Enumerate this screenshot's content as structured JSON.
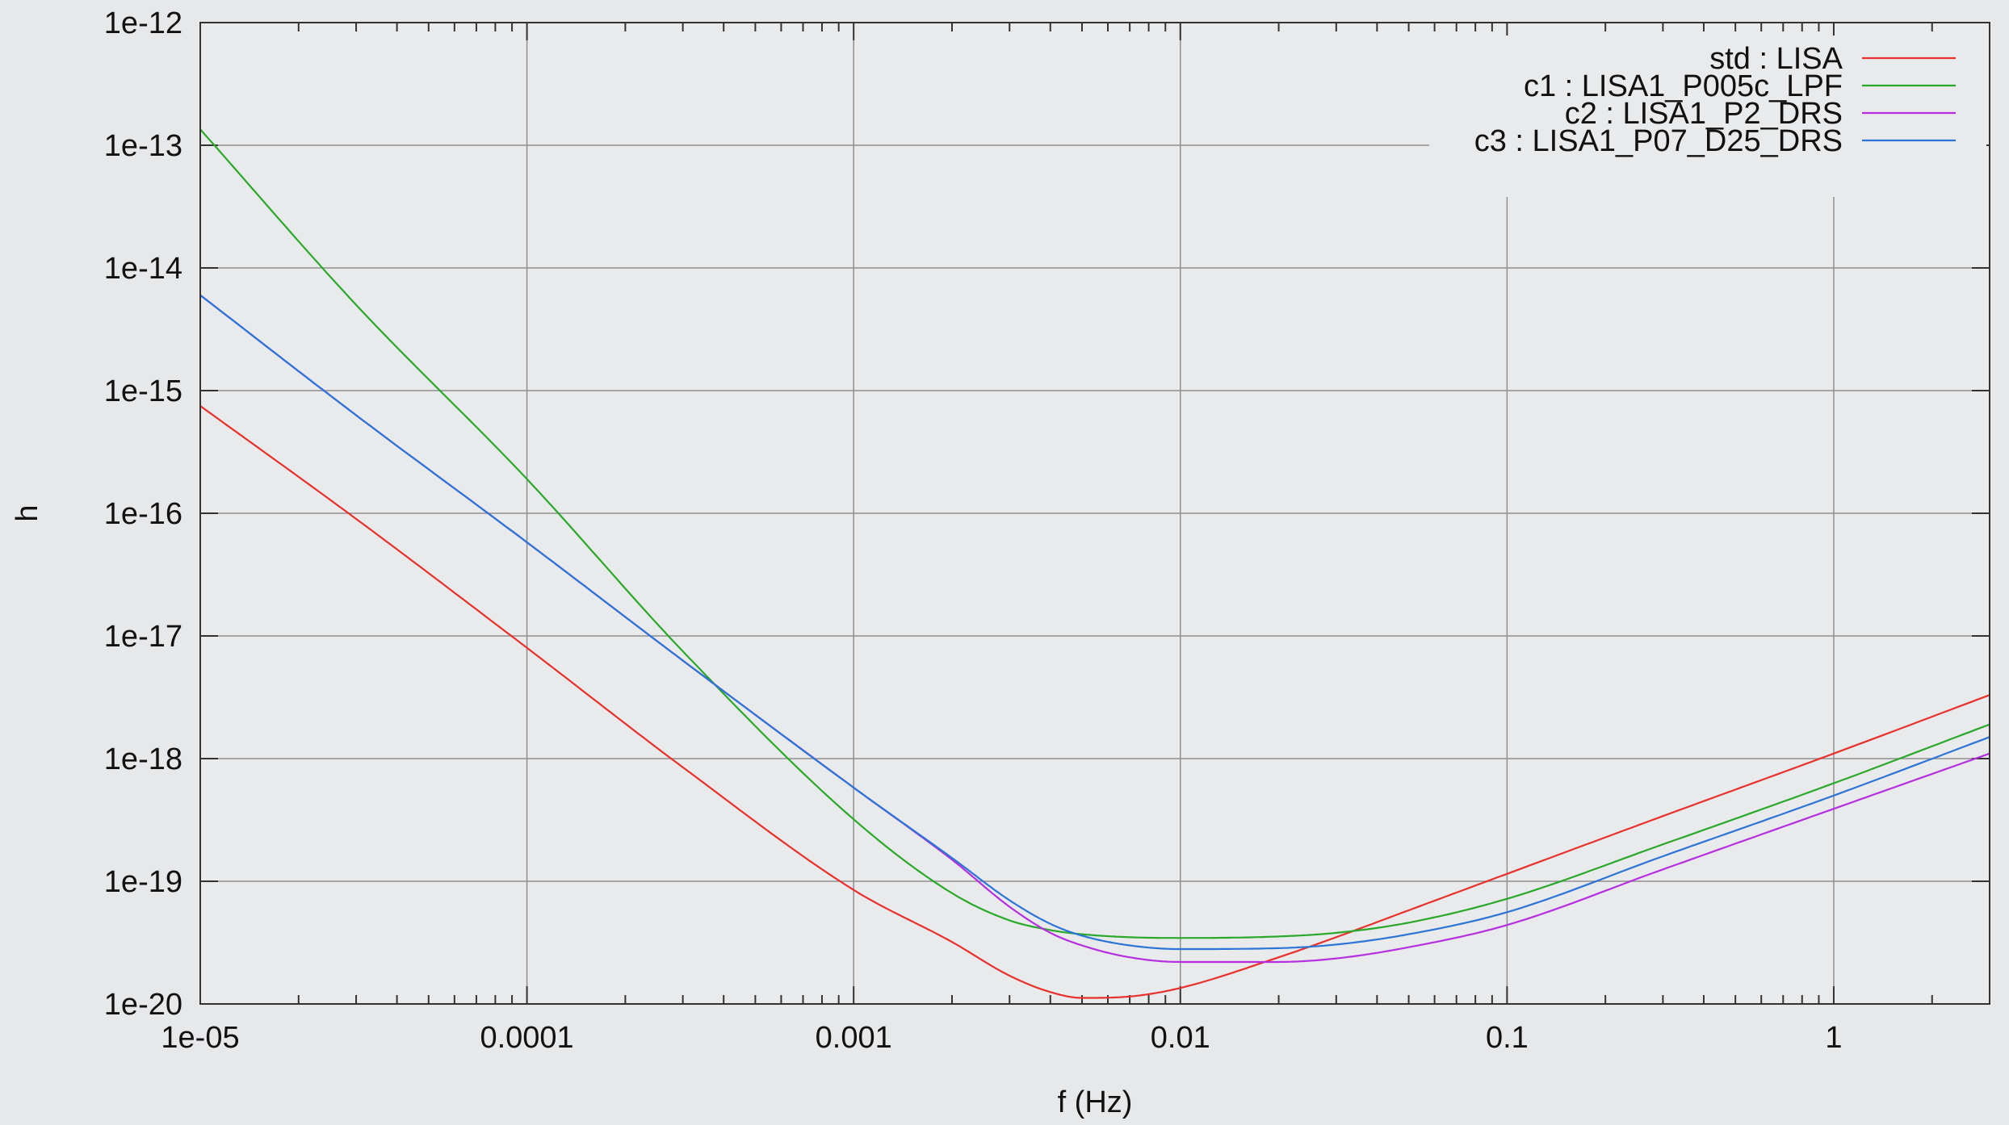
{
  "chart_data": {
    "type": "line",
    "title": "",
    "xlabel": "f (Hz)",
    "ylabel": "h",
    "xscale": "log",
    "yscale": "log",
    "xlim": [
      1e-05,
      3
    ],
    "ylim": [
      1e-20,
      1e-12
    ],
    "grid": true,
    "legend_position": "top-right",
    "x_ticks": [
      {
        "value": 1e-05,
        "label": "1e-05"
      },
      {
        "value": 0.0001,
        "label": "0.0001"
      },
      {
        "value": 0.001,
        "label": "0.001"
      },
      {
        "value": 0.01,
        "label": "0.01"
      },
      {
        "value": 0.1,
        "label": "0.1"
      },
      {
        "value": 1,
        "label": "1"
      }
    ],
    "y_ticks": [
      {
        "value": 1e-20,
        "label": "1e-20"
      },
      {
        "value": 1e-19,
        "label": "1e-19"
      },
      {
        "value": 1e-18,
        "label": "1e-18"
      },
      {
        "value": 1e-17,
        "label": "1e-17"
      },
      {
        "value": 1e-16,
        "label": "1e-16"
      },
      {
        "value": 1e-15,
        "label": "1e-15"
      },
      {
        "value": 1e-14,
        "label": "1e-14"
      },
      {
        "value": 1e-13,
        "label": "1e-13"
      },
      {
        "value": 1e-12,
        "label": "1e-12"
      }
    ],
    "series": [
      {
        "name": "std : LISA",
        "color": "#e8302c",
        "x": [
          1e-05,
          3e-05,
          0.0001,
          0.0003,
          0.001,
          0.002,
          0.003,
          0.004,
          0.005,
          0.007,
          0.01,
          0.02,
          0.03,
          0.05,
          0.1,
          0.3,
          1,
          3
        ],
        "y": [
          7.5e-16,
          9e-17,
          8e-18,
          8.5e-19,
          8.5e-20,
          3.2e-20,
          1.7e-20,
          1.25e-20,
          1.12e-20,
          1.15e-20,
          1.35e-20,
          2.4e-20,
          3.5e-20,
          5.8e-20,
          1.15e-19,
          3.4e-19,
          1.1e-18,
          3.3e-18
        ]
      },
      {
        "name": "c1 : LISA1_P005c_LPF",
        "color": "#2aa82a",
        "x": [
          1e-05,
          3e-05,
          0.0001,
          0.0003,
          0.001,
          0.002,
          0.003,
          0.004,
          0.005,
          0.007,
          0.01,
          0.02,
          0.03,
          0.05,
          0.1,
          0.3,
          1,
          3
        ],
        "y": [
          1.35e-13,
          5e-15,
          1.9e-16,
          7.5e-18,
          3.2e-19,
          8e-20,
          4.8e-20,
          4e-20,
          3.7e-20,
          3.5e-20,
          3.45e-20,
          3.55e-20,
          3.8e-20,
          4.6e-20,
          7.2e-20,
          2e-19,
          6.3e-19,
          1.9e-18
        ]
      },
      {
        "name": "c2 : LISA1_P2_DRS",
        "color": "#b52fe0",
        "x": [
          1e-05,
          3e-05,
          0.0001,
          0.0003,
          0.001,
          0.002,
          0.003,
          0.004,
          0.005,
          0.007,
          0.01,
          0.02,
          0.03,
          0.05,
          0.1,
          0.3,
          1,
          3
        ],
        "y": [
          6e-15,
          6.3e-16,
          5.8e-17,
          6.3e-18,
          5.8e-19,
          1.5e-19,
          6.2e-20,
          3.8e-20,
          3e-20,
          2.4e-20,
          2.2e-20,
          2.2e-20,
          2.35e-20,
          2.9e-20,
          4.4e-20,
          1.25e-19,
          3.9e-19,
          1.1e-18
        ]
      },
      {
        "name": "c3 : LISA1_P07_D25_DRS",
        "color": "#2c74d6",
        "x": [
          1e-05,
          3e-05,
          0.0001,
          0.0003,
          0.001,
          0.002,
          0.003,
          0.004,
          0.005,
          0.007,
          0.01,
          0.02,
          0.03,
          0.05,
          0.1,
          0.3,
          1,
          3
        ],
        "y": [
          6e-15,
          6.3e-16,
          5.8e-17,
          6.3e-18,
          5.8e-19,
          1.55e-19,
          7e-20,
          4.5e-20,
          3.6e-20,
          3e-20,
          2.8e-20,
          2.85e-20,
          3.05e-20,
          3.7e-20,
          5.6e-20,
          1.6e-19,
          5e-19,
          1.5e-18
        ]
      }
    ]
  }
}
